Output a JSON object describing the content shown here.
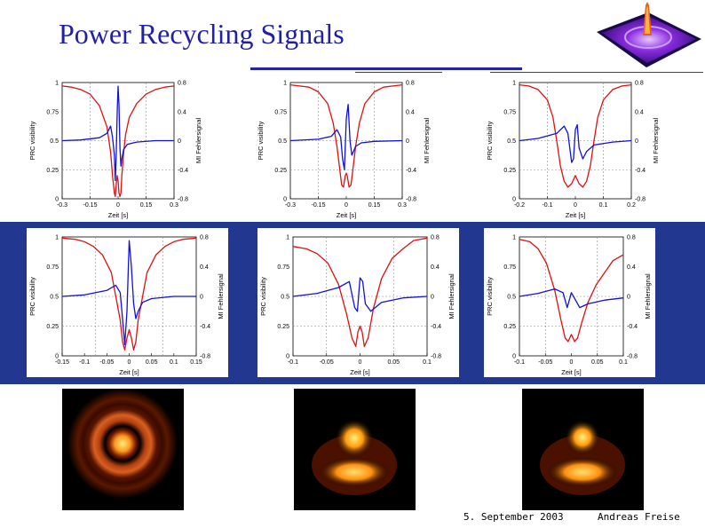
{
  "slide": {
    "title": "Power Recycling Signals",
    "footer_date": "5. September 2003",
    "footer_author": "Andreas Freise"
  },
  "colors": {
    "title": "#1f1fa8",
    "band": "#22378f",
    "visibility_curve": "#e01010",
    "error_signal_curve": "#1010e0"
  },
  "chart_data": [
    {
      "type": "line",
      "xlabel": "Zeit [s]",
      "ylabel_left": "PRC visibility",
      "ylabel_right": "MI Fehlersignal",
      "xticks": [
        "-0.3",
        "-0.15",
        "0",
        "0.15",
        "0.3"
      ],
      "xlim": [
        -0.3,
        0.3
      ],
      "yticks_left": [
        "0",
        "0.25",
        "0.5",
        "0.75",
        "1"
      ],
      "ylim_left": [
        0,
        1
      ],
      "yticks_right": [
        "-0.8",
        "-0.4",
        "0",
        "0.4",
        "0.8"
      ],
      "ylim_right": [
        -0.8,
        0.8
      ],
      "series": [
        {
          "role": "visibility",
          "x": [
            -0.3,
            -0.25,
            -0.2,
            -0.15,
            -0.1,
            -0.06,
            -0.04,
            -0.03,
            -0.02,
            -0.015,
            -0.01,
            -0.005,
            0,
            0.005,
            0.01,
            0.015,
            0.02,
            0.03,
            0.04,
            0.06,
            0.1,
            0.15,
            0.2,
            0.25,
            0.3
          ],
          "y": [
            0.97,
            0.96,
            0.94,
            0.9,
            0.8,
            0.62,
            0.4,
            0.2,
            0.05,
            0.02,
            0.12,
            0.2,
            0.15,
            0.05,
            0.02,
            0.05,
            0.2,
            0.4,
            0.55,
            0.7,
            0.82,
            0.9,
            0.94,
            0.96,
            0.97
          ]
        },
        {
          "role": "error_signal",
          "x": [
            -0.3,
            -0.2,
            -0.1,
            -0.06,
            -0.04,
            -0.03,
            -0.02,
            -0.015,
            -0.01,
            -0.005,
            0,
            0.005,
            0.01,
            0.015,
            0.02,
            0.03,
            0.05,
            0.1,
            0.2,
            0.3
          ],
          "y": [
            0.0,
            0.01,
            0.04,
            0.1,
            0.2,
            0.05,
            -0.2,
            -0.55,
            -0.2,
            0.35,
            0.75,
            0.5,
            -0.1,
            -0.35,
            -0.25,
            -0.12,
            -0.05,
            -0.02,
            0.0,
            0.0
          ]
        }
      ]
    },
    {
      "type": "line",
      "xlabel": "Zeit [s]",
      "ylabel_left": "PRC visibility",
      "ylabel_right": "MI Fehlersignal",
      "xticks": [
        "-0.3",
        "-0.15",
        "0",
        "0.15",
        "0.3"
      ],
      "xlim": [
        -0.3,
        0.3
      ],
      "yticks_left": [
        "0",
        "0.25",
        "0.5",
        "0.75",
        "1"
      ],
      "ylim_left": [
        0,
        1
      ],
      "yticks_right": [
        "-0.8",
        "-0.4",
        "0",
        "0.4",
        "0.8"
      ],
      "ylim_right": [
        -0.8,
        0.8
      ],
      "series": [
        {
          "role": "visibility",
          "x": [
            -0.3,
            -0.25,
            -0.2,
            -0.15,
            -0.1,
            -0.07,
            -0.05,
            -0.035,
            -0.025,
            -0.015,
            -0.005,
            0,
            0.005,
            0.015,
            0.025,
            0.035,
            0.05,
            0.07,
            0.1,
            0.15,
            0.2,
            0.25,
            0.3
          ],
          "y": [
            0.98,
            0.97,
            0.96,
            0.92,
            0.82,
            0.65,
            0.45,
            0.25,
            0.12,
            0.1,
            0.2,
            0.22,
            0.2,
            0.1,
            0.12,
            0.25,
            0.45,
            0.65,
            0.82,
            0.92,
            0.96,
            0.97,
            0.98
          ]
        },
        {
          "role": "error_signal",
          "x": [
            -0.3,
            -0.15,
            -0.08,
            -0.05,
            -0.03,
            -0.02,
            -0.01,
            0,
            0.01,
            0.02,
            0.03,
            0.05,
            0.08,
            0.15,
            0.3
          ],
          "y": [
            0.0,
            0.02,
            0.06,
            0.15,
            0.05,
            -0.25,
            -0.4,
            0.3,
            0.5,
            0.0,
            -0.2,
            -0.08,
            -0.03,
            -0.01,
            0.0
          ]
        }
      ]
    },
    {
      "type": "line",
      "xlabel": "Zeit [s]",
      "ylabel_left": "PRC visibility",
      "ylabel_right": "MI Fehlersignal",
      "xticks": [
        "-0.2",
        "-0.1",
        "0",
        "0.1",
        "0.2"
      ],
      "xlim": [
        -0.3,
        0.3
      ],
      "yticks_left": [
        "0",
        "0.25",
        "0.5",
        "0.75",
        "1"
      ],
      "ylim_left": [
        0,
        1
      ],
      "yticks_right": [
        "-0.8",
        "-0.4",
        "0",
        "0.4",
        "0.8"
      ],
      "ylim_right": [
        -0.8,
        0.8
      ],
      "series": [
        {
          "role": "visibility",
          "x": [
            -0.3,
            -0.25,
            -0.2,
            -0.15,
            -0.12,
            -0.1,
            -0.08,
            -0.06,
            -0.04,
            -0.02,
            0,
            0.02,
            0.04,
            0.06,
            0.08,
            0.1,
            0.12,
            0.15,
            0.2,
            0.25,
            0.3
          ],
          "y": [
            0.98,
            0.97,
            0.94,
            0.85,
            0.7,
            0.5,
            0.28,
            0.15,
            0.1,
            0.13,
            0.2,
            0.13,
            0.1,
            0.15,
            0.28,
            0.5,
            0.7,
            0.85,
            0.94,
            0.97,
            0.98
          ]
        },
        {
          "role": "error_signal",
          "x": [
            -0.3,
            -0.2,
            -0.1,
            -0.06,
            -0.04,
            -0.02,
            -0.01,
            0,
            0.01,
            0.02,
            0.04,
            0.06,
            0.1,
            0.2,
            0.3
          ],
          "y": [
            0.0,
            0.03,
            0.1,
            0.2,
            0.1,
            -0.3,
            -0.25,
            0.15,
            0.22,
            -0.1,
            -0.25,
            -0.15,
            -0.06,
            -0.02,
            0.0
          ]
        }
      ]
    },
    {
      "type": "line",
      "xlabel": "Zeit [s]",
      "ylabel_left": "PRC visibility",
      "ylabel_right": "MI Fehlersignal",
      "xticks": [
        "-0.15",
        "-0.1",
        "-0.05",
        "0",
        "0.05",
        "0.1",
        "0.15"
      ],
      "xlim": [
        -0.15,
        0.15
      ],
      "yticks_left": [
        "0",
        "0.25",
        "0.5",
        "0.75",
        "1"
      ],
      "ylim_left": [
        0,
        1
      ],
      "yticks_right": [
        "-0.8",
        "-0.4",
        "0",
        "0.4",
        "0.8"
      ],
      "ylim_right": [
        -0.8,
        0.8
      ],
      "series": [
        {
          "role": "visibility",
          "x": [
            -0.15,
            -0.12,
            -0.1,
            -0.08,
            -0.06,
            -0.04,
            -0.03,
            -0.02,
            -0.015,
            -0.01,
            -0.005,
            0,
            0.005,
            0.01,
            0.015,
            0.02,
            0.03,
            0.04,
            0.06,
            0.08,
            0.1,
            0.12,
            0.15
          ],
          "y": [
            0.99,
            0.98,
            0.96,
            0.92,
            0.85,
            0.7,
            0.5,
            0.3,
            0.12,
            0.05,
            0.15,
            0.22,
            0.15,
            0.05,
            0.12,
            0.3,
            0.5,
            0.7,
            0.85,
            0.92,
            0.96,
            0.98,
            0.99
          ]
        },
        {
          "role": "error_signal",
          "x": [
            -0.15,
            -0.1,
            -0.05,
            -0.03,
            -0.02,
            -0.015,
            -0.01,
            -0.005,
            0,
            0.005,
            0.01,
            0.015,
            0.02,
            0.03,
            0.05,
            0.1,
            0.15
          ],
          "y": [
            0.0,
            0.02,
            0.08,
            0.15,
            0.05,
            -0.3,
            -0.65,
            -0.2,
            0.75,
            0.4,
            -0.1,
            -0.3,
            -0.2,
            -0.08,
            -0.03,
            0.0,
            0.0
          ]
        }
      ]
    },
    {
      "type": "line",
      "xlabel": "Zeit [s]",
      "ylabel_left": "PRC visibility",
      "ylabel_right": "MI Fehlersignal",
      "xticks": [
        "-0.1",
        "-0.05",
        "0",
        "0.05",
        "0.1"
      ],
      "xlim": [
        -0.125,
        0.125
      ],
      "yticks_left": [
        "0",
        "0.25",
        "0.5",
        "0.75",
        "1"
      ],
      "ylim_left": [
        0,
        1
      ],
      "yticks_right": [
        "-0.8",
        "-0.4",
        "0",
        "0.4",
        "0.8"
      ],
      "ylim_right": [
        -0.8,
        0.8
      ],
      "series": [
        {
          "role": "visibility",
          "x": [
            -0.125,
            -0.1,
            -0.08,
            -0.06,
            -0.04,
            -0.025,
            -0.015,
            -0.008,
            -0.004,
            0,
            0.004,
            0.008,
            0.015,
            0.025,
            0.04,
            0.06,
            0.08,
            0.1,
            0.125
          ],
          "y": [
            0.92,
            0.9,
            0.86,
            0.78,
            0.6,
            0.35,
            0.15,
            0.08,
            0.2,
            0.25,
            0.2,
            0.08,
            0.15,
            0.4,
            0.65,
            0.82,
            0.9,
            0.97,
            0.99
          ]
        },
        {
          "role": "error_signal",
          "x": [
            -0.125,
            -0.08,
            -0.04,
            -0.02,
            -0.01,
            -0.005,
            0,
            0.005,
            0.01,
            0.02,
            0.04,
            0.08,
            0.125
          ],
          "y": [
            0.0,
            0.04,
            0.12,
            0.2,
            -0.15,
            -0.2,
            0.25,
            0.2,
            -0.1,
            -0.2,
            -0.08,
            -0.02,
            0.0
          ]
        }
      ]
    },
    {
      "type": "line",
      "xlabel": "Zeit [s]",
      "ylabel_left": "PRC visibility",
      "ylabel_right": "MI Fehlersignal",
      "xticks": [
        "-0.1",
        "-0.05",
        "0",
        "0.05",
        "0.1"
      ],
      "xlim": [
        -0.125,
        0.125
      ],
      "yticks_left": [
        "0",
        "0.25",
        "0.5",
        "0.75",
        "1"
      ],
      "ylim_left": [
        0,
        1
      ],
      "yticks_right": [
        "-0.8",
        "-0.4",
        "0",
        "0.4",
        "0.8"
      ],
      "ylim_right": [
        -0.8,
        0.8
      ],
      "series": [
        {
          "role": "visibility",
          "x": [
            -0.125,
            -0.1,
            -0.08,
            -0.06,
            -0.04,
            -0.025,
            -0.015,
            -0.008,
            0,
            0.008,
            0.015,
            0.025,
            0.04,
            0.06,
            0.08,
            0.1,
            0.125
          ],
          "y": [
            0.98,
            0.96,
            0.9,
            0.78,
            0.55,
            0.3,
            0.15,
            0.12,
            0.18,
            0.12,
            0.15,
            0.28,
            0.45,
            0.6,
            0.7,
            0.8,
            0.85
          ]
        },
        {
          "role": "error_signal",
          "x": [
            -0.125,
            -0.08,
            -0.04,
            -0.02,
            -0.01,
            0,
            0.01,
            0.02,
            0.04,
            0.08,
            0.125
          ],
          "y": [
            0.0,
            0.04,
            0.1,
            0.05,
            -0.15,
            0.05,
            -0.05,
            -0.15,
            -0.1,
            -0.05,
            -0.02
          ]
        }
      ]
    }
  ]
}
